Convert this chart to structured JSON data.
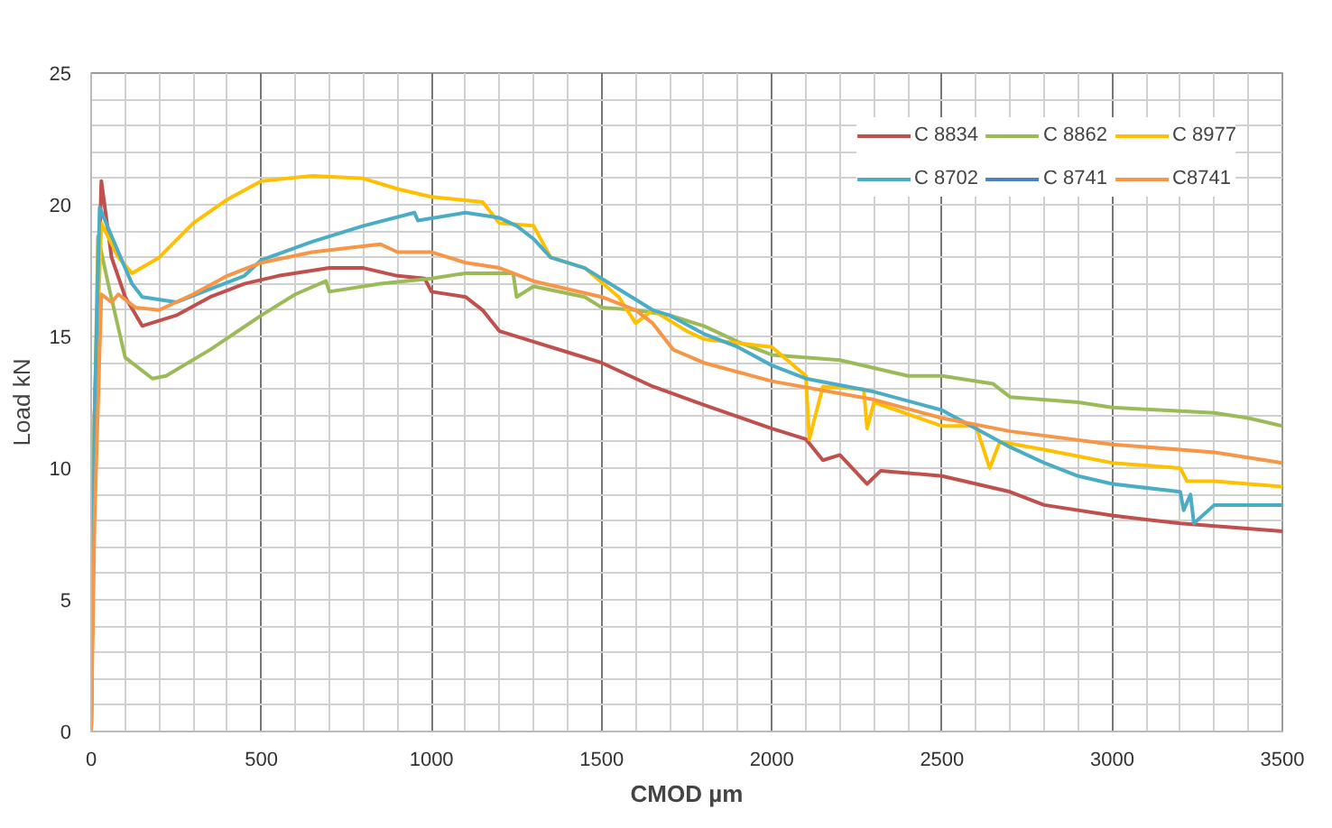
{
  "chart_data": {
    "type": "line",
    "xlabel": "CMOD µm",
    "ylabel": "Load kN",
    "xlim": [
      0,
      3500
    ],
    "xticks": [
      0,
      500,
      1000,
      1500,
      2000,
      2500,
      3000,
      3500
    ],
    "ylim": [
      0,
      25
    ],
    "yticks": [
      0,
      5,
      10,
      15,
      20,
      25
    ],
    "grid": true,
    "legend": "top right",
    "marker": "none",
    "line_style": "solid",
    "series": [
      {
        "name": "C 8834",
        "color": "#c0504d",
        "x": [
          0,
          10,
          30,
          60,
          100,
          150,
          250,
          350,
          450,
          550,
          700,
          800,
          900,
          980,
          1000,
          1100,
          1150,
          1200,
          1300,
          1400,
          1500,
          1600,
          1650,
          1800,
          2000,
          2100,
          2150,
          2200,
          2280,
          2320,
          2500,
          2700,
          2800,
          3000,
          3200,
          3500
        ],
        "values": [
          0,
          12,
          20.9,
          18,
          16.5,
          15.4,
          15.8,
          16.5,
          17.0,
          17.3,
          17.6,
          17.6,
          17.3,
          17.2,
          16.7,
          16.5,
          16.0,
          15.2,
          14.8,
          14.4,
          14.0,
          13.4,
          13.1,
          12.4,
          11.5,
          11.1,
          10.3,
          10.5,
          9.4,
          9.9,
          9.7,
          9.1,
          8.6,
          8.2,
          7.9,
          7.6
        ]
      },
      {
        "name": "C 8862",
        "color": "#9bbb59",
        "x": [
          0,
          8,
          20,
          50,
          100,
          180,
          220,
          350,
          500,
          600,
          690,
          700,
          850,
          1000,
          1100,
          1240,
          1250,
          1300,
          1450,
          1500,
          1600,
          1700,
          1800,
          1900,
          2000,
          2200,
          2400,
          2500,
          2650,
          2700,
          2900,
          3000,
          3300,
          3400,
          3500
        ],
        "values": [
          0,
          10,
          18.8,
          17.0,
          14.2,
          13.4,
          13.5,
          14.5,
          15.8,
          16.6,
          17.1,
          16.7,
          17.0,
          17.2,
          17.4,
          17.4,
          16.5,
          16.9,
          16.5,
          16.1,
          16.0,
          15.8,
          15.4,
          14.8,
          14.3,
          14.1,
          13.5,
          13.5,
          13.2,
          12.7,
          12.5,
          12.3,
          12.1,
          11.9,
          11.6
        ]
      },
      {
        "name": "C 8977",
        "color": "#ffc000",
        "x": [
          0,
          10,
          30,
          80,
          120,
          200,
          300,
          400,
          500,
          650,
          800,
          900,
          1000,
          1150,
          1200,
          1300,
          1350,
          1450,
          1550,
          1600,
          1650,
          1750,
          1800,
          2000,
          2100,
          2110,
          2150,
          2270,
          2280,
          2300,
          2500,
          2600,
          2640,
          2670,
          2800,
          3000,
          3200,
          3220,
          3300,
          3500
        ],
        "values": [
          0,
          12,
          19.3,
          18.0,
          17.4,
          18.0,
          19.3,
          20.2,
          20.9,
          21.1,
          21.0,
          20.6,
          20.3,
          20.1,
          19.3,
          19.2,
          18.0,
          17.6,
          16.5,
          15.5,
          16.0,
          15.2,
          14.9,
          14.6,
          13.5,
          11.1,
          13.1,
          13.0,
          11.5,
          12.5,
          11.6,
          11.6,
          10.0,
          11.0,
          10.7,
          10.2,
          10.0,
          9.5,
          9.5,
          9.3
        ]
      },
      {
        "name": "C 8702",
        "color": "#4bacc6",
        "x": [
          0,
          10,
          25,
          70,
          120,
          150,
          250,
          350,
          450,
          500,
          650,
          800,
          950,
          960,
          1100,
          1200,
          1250,
          1300,
          1350,
          1450,
          1550,
          1650,
          1700,
          1800,
          1900,
          2000,
          2100,
          2300,
          2500,
          2600,
          2700,
          2800,
          2900,
          3000,
          3200,
          3210,
          3230,
          3240,
          3300,
          3500
        ],
        "values": [
          0,
          12,
          19.9,
          18.5,
          17.0,
          16.5,
          16.3,
          16.8,
          17.3,
          17.9,
          18.6,
          19.2,
          19.7,
          19.4,
          19.7,
          19.5,
          19.2,
          18.7,
          18.0,
          17.6,
          16.8,
          16.0,
          15.8,
          15.1,
          14.6,
          13.9,
          13.4,
          12.9,
          12.2,
          11.5,
          10.8,
          10.2,
          9.7,
          9.4,
          9.1,
          8.4,
          9.0,
          7.9,
          8.6,
          8.6
        ]
      },
      {
        "name": "C 8741",
        "color": "#4f81bd"
      },
      {
        "name": "C8741",
        "color": "#f79646",
        "x": [
          0,
          10,
          30,
          60,
          80,
          130,
          200,
          300,
          400,
          500,
          650,
          850,
          900,
          1000,
          1100,
          1200,
          1300,
          1400,
          1500,
          1600,
          1650,
          1710,
          1800,
          2000,
          2300,
          2500,
          2700,
          3000,
          3300,
          3500
        ],
        "values": [
          0,
          8,
          16.6,
          16.3,
          16.6,
          16.1,
          16.0,
          16.6,
          17.3,
          17.8,
          18.2,
          18.5,
          18.2,
          18.2,
          17.8,
          17.6,
          17.1,
          16.8,
          16.5,
          16.0,
          15.5,
          14.5,
          14.0,
          13.3,
          12.6,
          11.9,
          11.4,
          10.9,
          10.6,
          10.2
        ]
      }
    ]
  }
}
